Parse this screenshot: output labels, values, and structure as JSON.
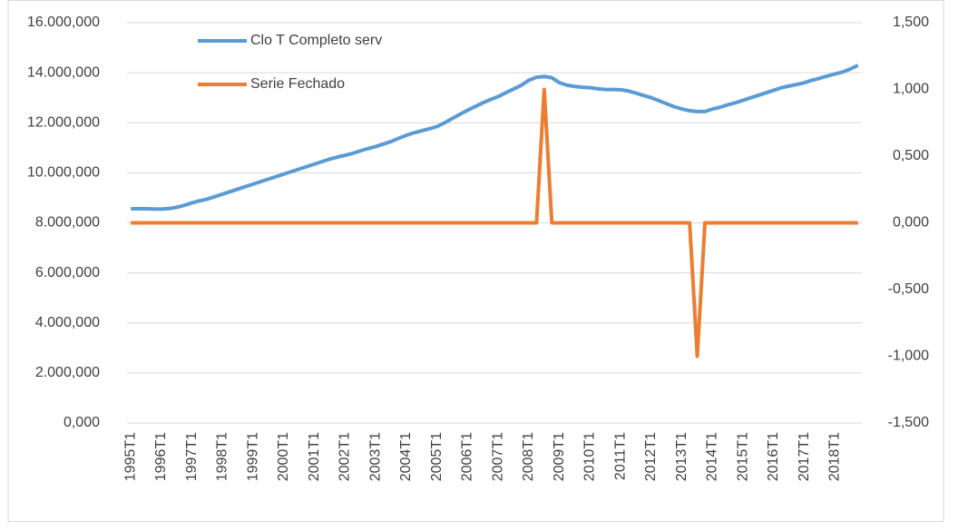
{
  "chart_data": {
    "type": "line",
    "categories": [
      "1995T1",
      null,
      null,
      null,
      "1996T1",
      null,
      null,
      null,
      "1997T1",
      null,
      null,
      null,
      "1998T1",
      null,
      null,
      null,
      "1999T1",
      null,
      null,
      null,
      "2000T1",
      null,
      null,
      null,
      "2001T1",
      null,
      null,
      null,
      "2002T1",
      null,
      null,
      null,
      "2003T1",
      null,
      null,
      null,
      "2004T1",
      null,
      null,
      null,
      "2005T1",
      null,
      null,
      null,
      "2006T1",
      null,
      null,
      null,
      "2007T1",
      null,
      null,
      null,
      "2008T1",
      null,
      null,
      null,
      "2009T1",
      null,
      null,
      null,
      "2010T1",
      null,
      null,
      null,
      "2011T1",
      null,
      null,
      null,
      "2012T1",
      null,
      null,
      null,
      "2013T1",
      null,
      null,
      null,
      "2014T1",
      null,
      null,
      null,
      "2015T1",
      null,
      null,
      null,
      "2016T1",
      null,
      null,
      null,
      "2017T1",
      null,
      null,
      null,
      "2018T1",
      null,
      null,
      null
    ],
    "series": [
      {
        "name": "Clo T Completo serv",
        "color": "#5b9bd5",
        "values": [
          8560,
          8560,
          8560,
          8555,
          8550,
          8570,
          8620,
          8700,
          8800,
          8880,
          8950,
          9050,
          9150,
          9250,
          9350,
          9450,
          9550,
          9650,
          9750,
          9850,
          9950,
          10050,
          10150,
          10250,
          10350,
          10450,
          10550,
          10630,
          10700,
          10780,
          10880,
          10970,
          11050,
          11150,
          11250,
          11380,
          11500,
          11600,
          11680,
          11760,
          11850,
          12000,
          12170,
          12340,
          12500,
          12650,
          12800,
          12930,
          13050,
          13200,
          13350,
          13500,
          13700,
          13820,
          13850,
          13800,
          13600,
          13500,
          13450,
          13420,
          13400,
          13360,
          13330,
          13330,
          13320,
          13270,
          13180,
          13090,
          13000,
          12880,
          12760,
          12640,
          12550,
          12480,
          12450,
          12450,
          12550,
          12620,
          12720,
          12800,
          12900,
          13000,
          13100,
          13200,
          13300,
          13400,
          13470,
          13530,
          13600,
          13700,
          13780,
          13870,
          13950,
          14030,
          14150,
          14300
        ]
      },
      {
        "name": "Serie Fechado",
        "color": "#ed7d31",
        "axis": "y2",
        "values": [
          0,
          0,
          0,
          0,
          0,
          0,
          0,
          0,
          0,
          0,
          0,
          0,
          0,
          0,
          0,
          0,
          0,
          0,
          0,
          0,
          0,
          0,
          0,
          0,
          0,
          0,
          0,
          0,
          0,
          0,
          0,
          0,
          0,
          0,
          0,
          0,
          0,
          0,
          0,
          0,
          0,
          0,
          0,
          0,
          0,
          0,
          0,
          0,
          0,
          0,
          0,
          0,
          0,
          0,
          1,
          0,
          0,
          0,
          0,
          0,
          0,
          0,
          0,
          0,
          0,
          0,
          0,
          0,
          0,
          0,
          0,
          0,
          0,
          0,
          -1,
          0,
          0,
          0,
          0,
          0,
          0,
          0,
          0,
          0,
          0,
          0,
          0,
          0,
          0,
          0,
          0,
          0,
          0,
          0,
          0,
          0
        ]
      }
    ],
    "ylim": [
      0,
      16000
    ],
    "yticks": [
      {
        "value": 0,
        "label": "0,000"
      },
      {
        "value": 2000,
        "label": "2.000,000"
      },
      {
        "value": 4000,
        "label": "4.000,000"
      },
      {
        "value": 6000,
        "label": "6.000,000"
      },
      {
        "value": 8000,
        "label": "8.000,000"
      },
      {
        "value": 10000,
        "label": "10.000,000"
      },
      {
        "value": 12000,
        "label": "12.000,000"
      },
      {
        "value": 14000,
        "label": "14.000,000"
      },
      {
        "value": 16000,
        "label": "16.000,000"
      }
    ],
    "y2lim": [
      -1.5,
      1.5
    ],
    "y2ticks": [
      {
        "value": -1.5,
        "label": "-1,500"
      },
      {
        "value": -1,
        "label": "-1,000"
      },
      {
        "value": -0.5,
        "label": "-0,500"
      },
      {
        "value": 0,
        "label": "0,000"
      },
      {
        "value": 0.5,
        "label": "0,500"
      },
      {
        "value": 1,
        "label": "1,000"
      },
      {
        "value": 1.5,
        "label": "1,500"
      }
    ],
    "grid": true,
    "legend": "top-left"
  }
}
